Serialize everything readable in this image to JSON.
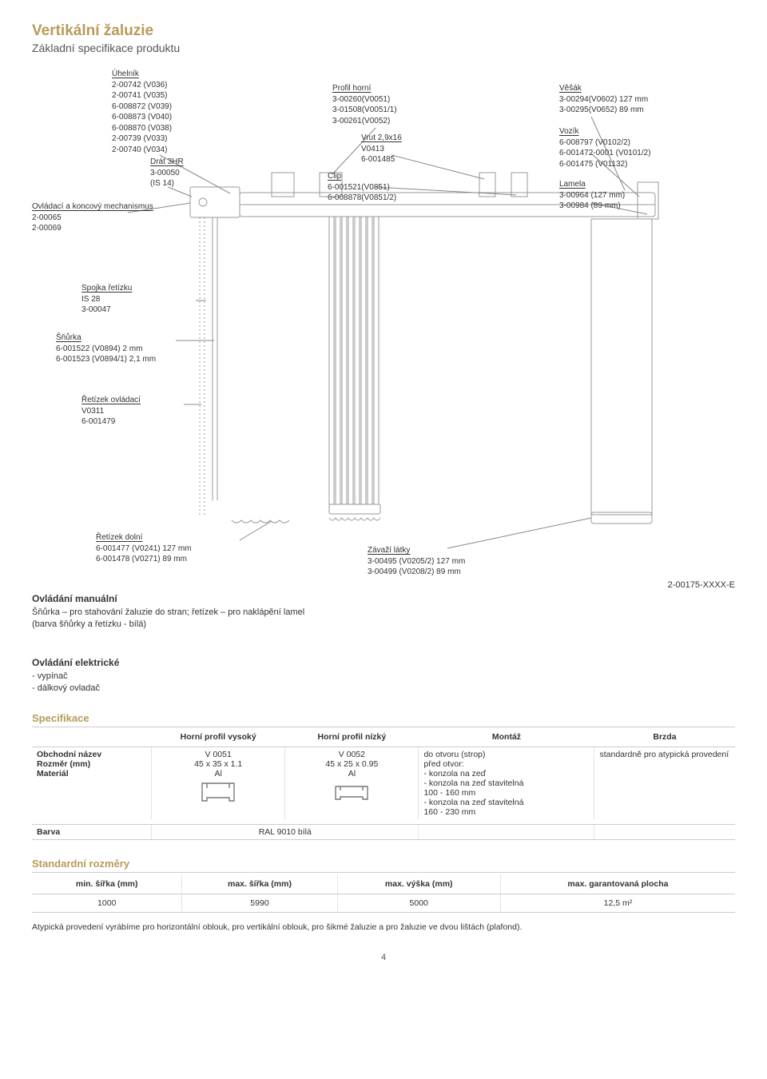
{
  "title": "Vertikální žaluzie",
  "subtitle": "Základní specifikace produktu",
  "labels": {
    "uhelnik": {
      "t": "Úhelník",
      "l": [
        "2-00742   (V036)",
        "2-00741   (V035)",
        "6-008872 (V039)",
        "6-008873 (V040)",
        "6-008870 (V038)",
        "2-00739   (V033)",
        "2-00740   (V034)"
      ]
    },
    "drat": {
      "t": "Drát 3HR",
      "l": [
        "3-00050",
        "(IS 14)"
      ]
    },
    "mechanismus": {
      "t": "Ovládací a koncový mechanismus",
      "l": [
        "2-00065",
        "2-00069"
      ]
    },
    "profil": {
      "t": "Profil horní",
      "l": [
        "3-00260(V0051)",
        "3-01508(V0051/1)",
        "3-00261(V0052)"
      ]
    },
    "vrut": {
      "t": "Vrut 2,9x16",
      "l": [
        "V0413",
        "6-001485"
      ]
    },
    "clip": {
      "t": "Clip",
      "l": [
        "6-001521(V0851)",
        "6-008878(V0851/2)"
      ]
    },
    "vesak": {
      "t": "Věšák",
      "l": [
        "3-00294(V0602) 127 mm",
        "3-00295(V0652)   89 mm"
      ]
    },
    "vozik": {
      "t": "Vozík",
      "l": [
        "6-008797             (V0102/2)",
        "6-001472-0001 (V0101/2)",
        "6-001475             (V01132)"
      ]
    },
    "lamela": {
      "t": "Lamela",
      "l": [
        "3-00964 (127 mm)",
        "3-00984  (89 mm)"
      ]
    },
    "spojka": {
      "t": "Spojka řetízku",
      "l": [
        "IS 28",
        "3-00047"
      ]
    },
    "snurka": {
      "t": "Šňůrka",
      "l": [
        "6-001522 (V0894)     2 mm",
        "6-001523 (V0894/1) 2,1 mm"
      ]
    },
    "retizek_ovl": {
      "t": "Řetízek ovládací",
      "l": [
        "V0311",
        "6-001479"
      ]
    },
    "retizek_dolni": {
      "t": "Řetízek dolní",
      "l": [
        "6-001477 (V0241) 127 mm",
        "6-001478 (V0271)   89 mm"
      ]
    },
    "zavazi": {
      "t": "Závaží látky",
      "l": [
        "3-00495 (V0205/2) 127 mm",
        "3-00499 (V0208/2)   89 mm"
      ]
    }
  },
  "manual": {
    "title": "Ovládání manuální",
    "body": "Šňůrka – pro stahování žaluzie do stran; řetízek – pro naklápění lamel\n(barva šňůrky a řetízku - bílá)",
    "code": "2-00175-XXXX-E"
  },
  "electric": {
    "title": "Ovládání elektrické",
    "items": [
      "- vypínač",
      "- dálkový ovladač"
    ]
  },
  "spec": {
    "heading": "Specifikace",
    "columns": [
      "",
      "Horní profil vysoký",
      "Horní profil nízký",
      "Montáž",
      "Brzda"
    ],
    "row_labels": [
      "Obchodní název",
      "Rozměr (mm)",
      "Materiál"
    ],
    "col_vysoky": [
      "V 0051",
      "45 x 35 x 1.1",
      "Al"
    ],
    "col_nizky": [
      "V 0052",
      "45 x 25 x 0.95",
      "Al"
    ],
    "montaz": [
      "do otvoru (strop)",
      "před otvor:",
      "- konzola na zeď",
      "- konzola na zeď stavitelná",
      "  100 - 160 mm",
      "- konzola na zeď stavitelná",
      "  160 - 230 mm"
    ],
    "brzda": "standardně pro atypická provedení",
    "color_label": "Barva",
    "color_value": "RAL 9010 bílá"
  },
  "dims": {
    "heading": "Standardní rozměry",
    "columns": [
      "min. šířka (mm)",
      "max. šířka (mm)",
      "max. výška (mm)",
      "max. garantovaná plocha"
    ],
    "row": [
      "1000",
      "5990",
      "5000",
      "12,5 m²"
    ]
  },
  "footnote": "Atypická provedení vyrábíme pro horizontální oblouk, pro vertikální oblouk, pro šikmé žaluzie a pro žaluzie ve dvou lištách (plafond).",
  "page_number": "4",
  "colors": {
    "accent": "#b89a5a",
    "line": "#b9b9b9",
    "stroke": "#8a8a8a"
  }
}
